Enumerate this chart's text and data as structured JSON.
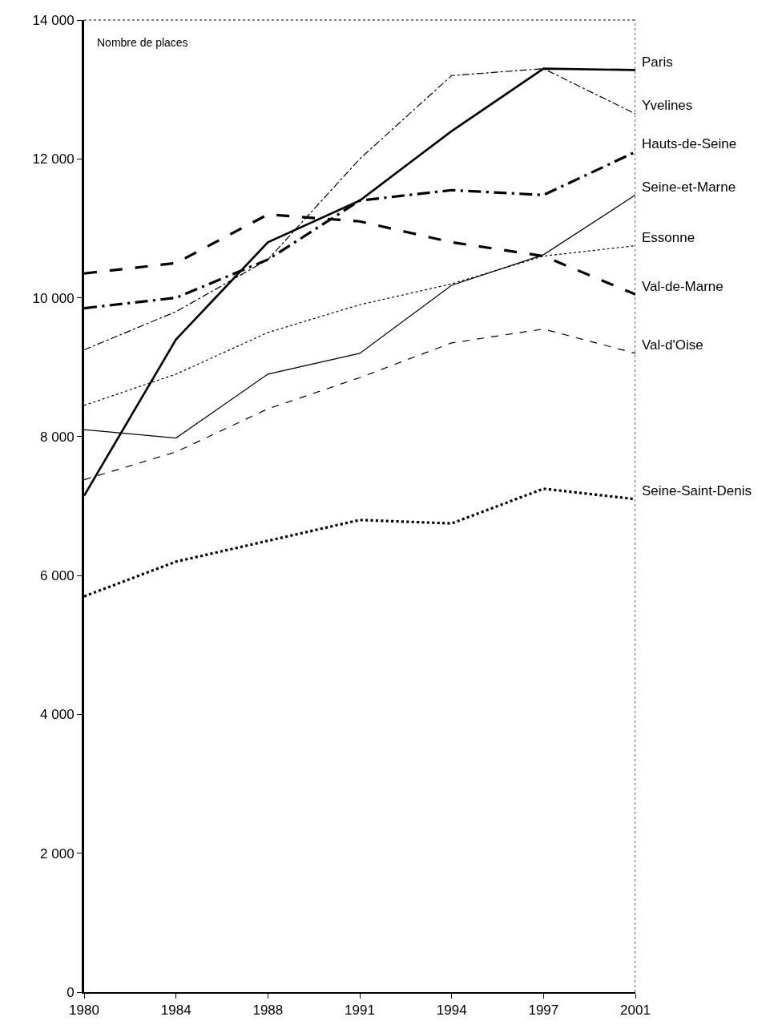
{
  "chart_data": {
    "type": "line",
    "categories": [
      "1980",
      "1984",
      "1988",
      "1991",
      "1994",
      "1997",
      "2001"
    ],
    "series": [
      {
        "name": "Paris",
        "color": "#000000",
        "line_style": "solid",
        "values": [
          7150,
          9400,
          10800,
          11400,
          12400,
          13300,
          13280
        ]
      },
      {
        "name": "Yvelines",
        "color": "#000000",
        "line_style": "dashdot",
        "values": [
          9250,
          9800,
          10550,
          12000,
          13200,
          13300,
          12650
        ]
      },
      {
        "name": "Hauts-de-Seine",
        "color": "#000000",
        "line_style": "longdashdot",
        "values": [
          9850,
          10000,
          10550,
          11400,
          11550,
          11480,
          12100
        ]
      },
      {
        "name": "Seine-et-Marne",
        "color": "#000000",
        "line_style": "solid",
        "values": [
          8100,
          7980,
          8900,
          9200,
          10180,
          10620,
          11480
        ]
      },
      {
        "name": "Essonne",
        "color": "#000000",
        "line_style": "dotted",
        "values": [
          8450,
          8900,
          9500,
          9900,
          10200,
          10600,
          10750
        ]
      },
      {
        "name": "Val-de-Marne",
        "color": "#000000",
        "line_style": "longdash",
        "values": [
          10350,
          10500,
          11200,
          11100,
          10800,
          10600,
          10050
        ]
      },
      {
        "name": "Val-d'Oise",
        "color": "#000000",
        "line_style": "dashed",
        "values": [
          7380,
          7780,
          8400,
          8850,
          9350,
          9550,
          9200
        ]
      },
      {
        "name": "Seine-Saint-Denis",
        "color": "#000000",
        "line_style": "dotted",
        "values": [
          5700,
          6200,
          6500,
          6800,
          6750,
          7250,
          7100
        ]
      }
    ],
    "ylim": [
      0,
      14000
    ],
    "yticks": [
      {
        "value": 0,
        "label": "0"
      },
      {
        "value": 2000,
        "label": "2 000"
      },
      {
        "value": 4000,
        "label": "4 000"
      },
      {
        "value": 6000,
        "label": "6 000"
      },
      {
        "value": 8000,
        "label": "8 000"
      },
      {
        "value": 10000,
        "label": "10 000"
      },
      {
        "value": 12000,
        "label": "12 000"
      },
      {
        "value": 14000,
        "label": "14 000"
      }
    ],
    "annotations": [
      "Nombre de places"
    ],
    "legend": false,
    "marker": "none"
  }
}
